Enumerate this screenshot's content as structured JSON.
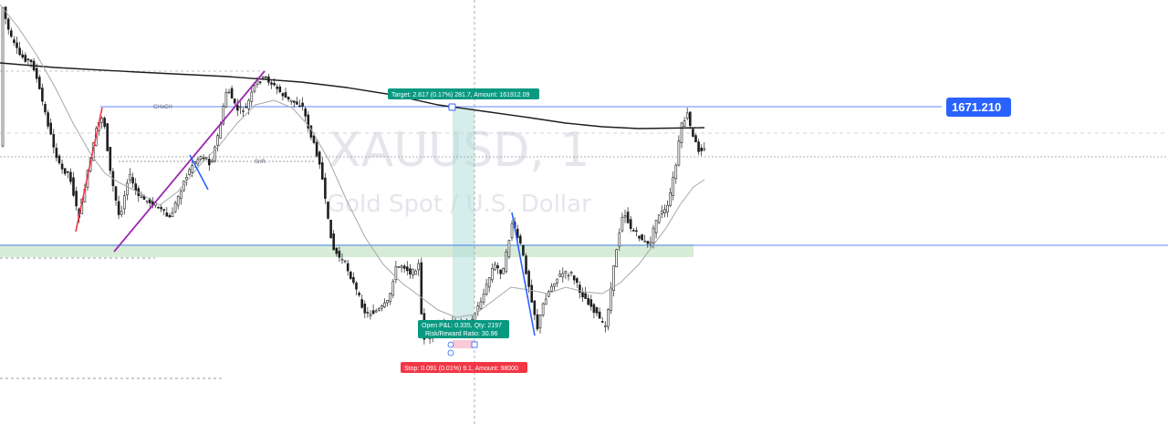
{
  "watermark": {
    "symbol": "XAUUSD, 1",
    "description": "Gold Spot / U.S. Dollar"
  },
  "price_label": {
    "value": "1671.210",
    "color": "#2962ff"
  },
  "position_tool": {
    "target_text": "Target: 2.817 (0.17%) 281.7, Amount: 161912.09",
    "open_text_1": "Open P&L: 0.335, Qty: 2197",
    "open_text_2": "Risk/Reward Ratio: 30.96",
    "stop_text": "Stop: 0.091 (0.01%) 9.1, Amount: 98000",
    "target_color": "#089981",
    "stop_color": "#f23645"
  },
  "annotations": {
    "choch": "CHoCH",
    "snr": "SnR"
  },
  "chart_data": {
    "type": "candlestick",
    "symbol": "XAUUSD",
    "timeframe": "1",
    "levels": [
      1671.21
    ],
    "price_range": [
      1665.9,
      1672.5
    ]
  }
}
